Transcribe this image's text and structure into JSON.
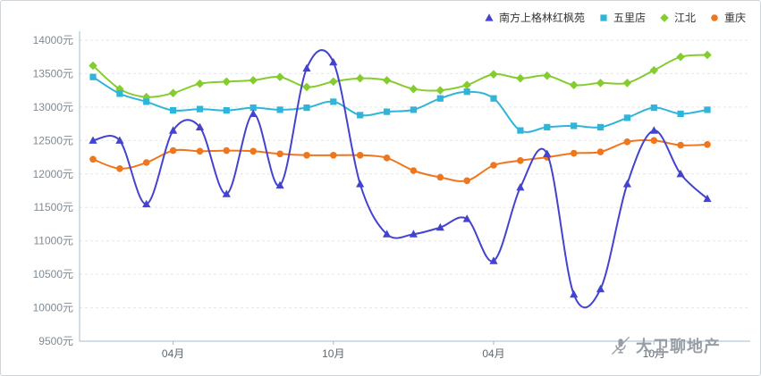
{
  "watermark": {
    "text": "大卫聊地产"
  },
  "chart_data": {
    "type": "line",
    "title": "",
    "n_points": 24,
    "x_axis": {
      "tick_positions": [
        3,
        9,
        15,
        21
      ],
      "tick_labels": [
        "04月",
        "10月",
        "04月",
        "10月"
      ]
    },
    "y_axis": {
      "ticks": [
        9500,
        10000,
        10500,
        11000,
        11500,
        12000,
        12500,
        13000,
        13500,
        14000
      ],
      "unit": "元",
      "range": [
        9500,
        14000
      ]
    },
    "grid": "horizontal-dashed",
    "legend_position": "top-right",
    "series": [
      {
        "name": "南方上格林红枫苑",
        "color": "#4343cf",
        "marker": "triangle",
        "values": [
          12500,
          12500,
          11550,
          12650,
          12700,
          11700,
          12900,
          11830,
          13580,
          13670,
          11850,
          11100,
          11100,
          11200,
          11330,
          10700,
          11800,
          12300,
          10200,
          10280,
          11850,
          12650,
          12000,
          11630
        ]
      },
      {
        "name": "五里店",
        "color": "#2fb5d9",
        "marker": "square",
        "values": [
          13450,
          13200,
          13080,
          12950,
          12970,
          12950,
          12990,
          12960,
          12990,
          13080,
          12880,
          12930,
          12960,
          13130,
          13230,
          13130,
          12650,
          12700,
          12720,
          12700,
          12840,
          12990,
          12900,
          12960
        ]
      },
      {
        "name": "江北",
        "color": "#85cc2f",
        "marker": "diamond",
        "values": [
          13620,
          13270,
          13150,
          13210,
          13350,
          13380,
          13400,
          13450,
          13300,
          13380,
          13430,
          13400,
          13270,
          13250,
          13330,
          13490,
          13430,
          13470,
          13330,
          13360,
          13360,
          13550,
          13750,
          13780
        ]
      },
      {
        "name": "重庆",
        "color": "#f0761e",
        "marker": "circle",
        "values": [
          12220,
          12080,
          12170,
          12350,
          12340,
          12350,
          12340,
          12300,
          12280,
          12280,
          12280,
          12240,
          12050,
          11950,
          11900,
          12130,
          12200,
          12250,
          12310,
          12330,
          12480,
          12500,
          12430,
          12440
        ]
      }
    ]
  }
}
